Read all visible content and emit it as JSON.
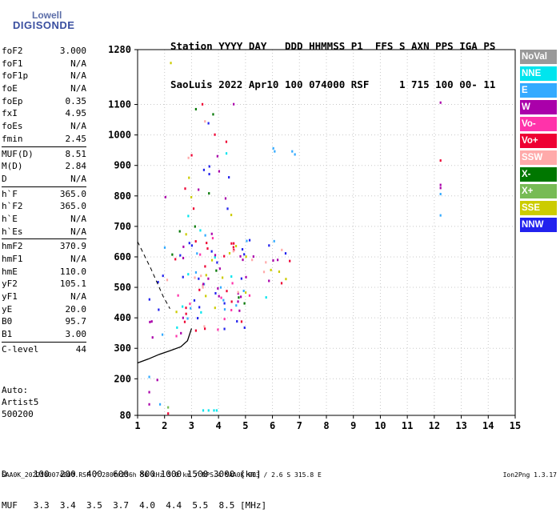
{
  "logo": {
    "top": "Lowell",
    "main": "DIGISONDE"
  },
  "header": {
    "line1": "Station YYYY DAY   DDD HHMMSS P1  FFS S AXN PPS IGA PS",
    "line2": "SaoLuis 2022 Apr10 100 074000 RSF     1 715 100 00- 11"
  },
  "params_group1": [
    {
      "label": "foF2",
      "value": "3.000"
    },
    {
      "label": "foF1",
      "value": "N/A"
    },
    {
      "label": "foF1p",
      "value": "N/A"
    },
    {
      "label": "foE",
      "value": "N/A"
    },
    {
      "label": "foEp",
      "value": "0.35"
    },
    {
      "label": "fxI",
      "value": "4.95"
    },
    {
      "label": "foEs",
      "value": "N/A"
    },
    {
      "label": "fmin",
      "value": "2.45"
    }
  ],
  "params_group2": [
    {
      "label": "MUF(D)",
      "value": "8.51"
    },
    {
      "label": "M(D)",
      "value": "2.84"
    },
    {
      "label": "D",
      "value": "N/A"
    }
  ],
  "params_group3": [
    {
      "label": "h`F",
      "value": "365.0"
    },
    {
      "label": "h`F2",
      "value": "365.0"
    },
    {
      "label": "h`E",
      "value": "N/A"
    },
    {
      "label": "h`Es",
      "value": "N/A"
    }
  ],
  "params_group4": [
    {
      "label": "hmF2",
      "value": "370.9"
    },
    {
      "label": "hmF1",
      "value": "N/A"
    },
    {
      "label": "hmE",
      "value": "110.0"
    },
    {
      "label": "yF2",
      "value": "105.1"
    },
    {
      "label": "yF1",
      "value": "N/A"
    },
    {
      "label": "yE",
      "value": "20.0"
    },
    {
      "label": "B0",
      "value": "95.7"
    },
    {
      "label": "B1",
      "value": "3.00"
    }
  ],
  "params_group5": [
    {
      "label": "C-level",
      "value": "44"
    }
  ],
  "auto": {
    "line1": "Auto:",
    "line2": "Artist5",
    "line3": "500200"
  },
  "legend": [
    {
      "label": "NoVal",
      "color": "#999999"
    },
    {
      "label": "NNE",
      "color": "#00e5ee"
    },
    {
      "label": "E",
      "color": "#33aaff"
    },
    {
      "label": "W",
      "color": "#aa00aa"
    },
    {
      "label": "Vo-",
      "color": "#ff33aa"
    },
    {
      "label": "Vo+",
      "color": "#ee0033"
    },
    {
      "label": "SSW",
      "color": "#ffaaaa"
    },
    {
      "label": "X-",
      "color": "#007700"
    },
    {
      "label": "X+",
      "color": "#77bb55"
    },
    {
      "label": "SSE",
      "color": "#cccc00"
    },
    {
      "label": "NNW",
      "color": "#2222ee"
    }
  ],
  "footer": {
    "line1": "D     100  200  400  600  800 1000 1500 3000 [km]",
    "line2": "MUF   3.3  3.4  3.5  3.7  4.0  4.4  5.5  8.5 [MHz]"
  },
  "footnote": "SAA0K_2022100074000.RSF / 280fx256h 50 kHz 5.0 km / DPS-4 SAA0K 903 / 2.6 S 315.8 E",
  "version": "Ion2Png 1.3.17",
  "chart_data": {
    "type": "scatter",
    "title": "",
    "xlabel": "",
    "ylabel": "",
    "xlim": [
      1,
      15
    ],
    "ylim": [
      80,
      1280
    ],
    "x_ticks": [
      1,
      2,
      3,
      4,
      5,
      6,
      7,
      8,
      9,
      10,
      11,
      12,
      13,
      14,
      15
    ],
    "y_ticks": [
      80,
      200,
      300,
      400,
      500,
      600,
      700,
      800,
      900,
      1000,
      1100,
      1280
    ],
    "grid": true,
    "legend_placement": "right",
    "profile_curve": [
      [
        1.0,
        252
      ],
      [
        1.4,
        265
      ],
      [
        1.8,
        280
      ],
      [
        2.2,
        292
      ],
      [
        2.6,
        305
      ],
      [
        2.85,
        325
      ],
      [
        3.0,
        365
      ]
    ],
    "dashed_trace": [
      [
        1.0,
        650
      ],
      [
        1.5,
        560
      ],
      [
        1.95,
        470
      ],
      [
        2.2,
        430
      ]
    ],
    "clusters": [
      {
        "name": "main_trace",
        "x": [
          2.3,
          5.0
        ],
        "y": [
          360,
          720
        ],
        "density": 1.0
      },
      {
        "name": "spread_F_tail",
        "x": [
          4.8,
          6.9
        ],
        "y": [
          460,
          660
        ],
        "density": 0.55
      },
      {
        "name": "upper_spread",
        "x": [
          2.7,
          4.6
        ],
        "y": [
          720,
          1120
        ],
        "density": 0.35
      },
      {
        "name": "low_trace",
        "x": [
          1.0,
          2.9
        ],
        "y": [
          330,
          470
        ],
        "density": 0.45
      },
      {
        "name": "oblique_echo",
        "x": [
          1.6,
          2.4
        ],
        "y": [
          520,
          720
        ],
        "density": 0.3
      }
    ],
    "isolated_points": [
      {
        "x": 12.2,
        "y": 1110,
        "c": "W"
      },
      {
        "x": 12.2,
        "y": 920,
        "c": "Vo+"
      },
      {
        "x": 12.2,
        "y": 840,
        "c": "W"
      },
      {
        "x": 12.2,
        "y": 830,
        "c": "W"
      },
      {
        "x": 12.2,
        "y": 810,
        "c": "E"
      },
      {
        "x": 12.2,
        "y": 740,
        "c": "E"
      },
      {
        "x": 6.0,
        "y": 960,
        "c": "E"
      },
      {
        "x": 6.05,
        "y": 950,
        "c": "E"
      },
      {
        "x": 6.7,
        "y": 950,
        "c": "E"
      },
      {
        "x": 6.8,
        "y": 940,
        "c": "E"
      },
      {
        "x": 2.2,
        "y": 1240,
        "c": "SSE"
      },
      {
        "x": 2.0,
        "y": 800,
        "c": "W"
      },
      {
        "x": 1.4,
        "y": 210,
        "c": "E"
      },
      {
        "x": 1.4,
        "y": 160,
        "c": "W"
      },
      {
        "x": 1.4,
        "y": 120,
        "c": "W"
      },
      {
        "x": 1.7,
        "y": 200,
        "c": "W"
      },
      {
        "x": 2.1,
        "y": 110,
        "c": "X+"
      },
      {
        "x": 2.1,
        "y": 90,
        "c": "Vo+"
      },
      {
        "x": 1.8,
        "y": 120,
        "c": "E"
      },
      {
        "x": 3.4,
        "y": 100,
        "c": "NNE"
      },
      {
        "x": 3.6,
        "y": 100,
        "c": "NNE"
      },
      {
        "x": 3.8,
        "y": 100,
        "c": "NNE"
      },
      {
        "x": 3.9,
        "y": 100,
        "c": "NNE"
      }
    ]
  }
}
